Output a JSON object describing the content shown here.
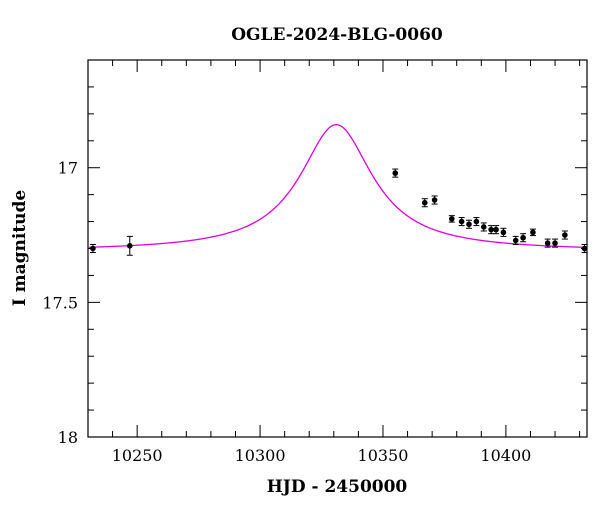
{
  "chart_data": {
    "type": "scatter",
    "title": "OGLE-2024-BLG-0060",
    "xlabel": "HJD - 2450000",
    "ylabel": "I magnitude",
    "xlim": [
      10230,
      10433
    ],
    "ylim": [
      18.0,
      16.6
    ],
    "y_inverted": true,
    "grid": false,
    "x_major_ticks": [
      10250,
      10300,
      10350,
      10400
    ],
    "x_tick_labels": [
      "10250",
      "10300",
      "10350",
      "10400"
    ],
    "x_minor_step": 10,
    "y_major_ticks": [
      17,
      17.5,
      18
    ],
    "y_tick_labels": [
      "17",
      "17.5",
      "18"
    ],
    "y_minor_step": 0.1,
    "model_color": "#e000e0",
    "point_color": "#000000",
    "model": {
      "type": "microlensing-fit",
      "t0": 10331,
      "baseline_mag": 17.31,
      "peak_mag": 16.84,
      "width_days": 18
    },
    "series": [
      {
        "values": [
          {
            "x": 10232,
            "y": 17.3,
            "err": 0.015
          },
          {
            "x": 10247,
            "y": 17.29,
            "err": 0.035
          },
          {
            "x": 10355,
            "y": 17.02,
            "err": 0.015
          },
          {
            "x": 10367,
            "y": 17.13,
            "err": 0.015
          },
          {
            "x": 10371,
            "y": 17.12,
            "err": 0.015
          },
          {
            "x": 10378,
            "y": 17.19,
            "err": 0.012
          },
          {
            "x": 10382,
            "y": 17.2,
            "err": 0.015
          },
          {
            "x": 10385,
            "y": 17.21,
            "err": 0.015
          },
          {
            "x": 10388,
            "y": 17.2,
            "err": 0.015
          },
          {
            "x": 10391,
            "y": 17.22,
            "err": 0.015
          },
          {
            "x": 10394,
            "y": 17.23,
            "err": 0.015
          },
          {
            "x": 10396,
            "y": 17.23,
            "err": 0.015
          },
          {
            "x": 10399,
            "y": 17.24,
            "err": 0.015
          },
          {
            "x": 10404,
            "y": 17.27,
            "err": 0.015
          },
          {
            "x": 10407,
            "y": 17.26,
            "err": 0.015
          },
          {
            "x": 10411,
            "y": 17.24,
            "err": 0.012
          },
          {
            "x": 10417,
            "y": 17.28,
            "err": 0.015
          },
          {
            "x": 10420,
            "y": 17.28,
            "err": 0.015
          },
          {
            "x": 10424,
            "y": 17.25,
            "err": 0.015
          },
          {
            "x": 10432,
            "y": 17.3,
            "err": 0.015
          }
        ]
      }
    ]
  }
}
